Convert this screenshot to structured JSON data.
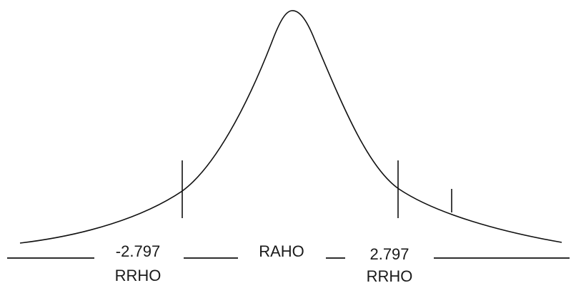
{
  "regions": {
    "left": {
      "value": "-2.797",
      "label": "RRHO"
    },
    "center": {
      "label": "RAHO"
    },
    "right": {
      "value": "2.797",
      "label": "RRHO"
    }
  },
  "colors": {
    "stroke": "#111111",
    "text": "#1a1a1a",
    "background": "#ffffff"
  }
}
